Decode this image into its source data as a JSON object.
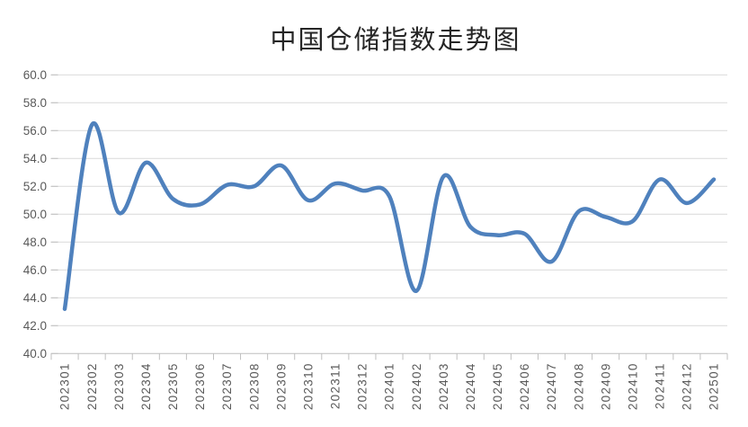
{
  "window": {
    "background": "#FFFFFF"
  },
  "chart_data": {
    "type": "line",
    "title": "中国仓储指数走势图",
    "categories": [
      "202301",
      "202302",
      "202303",
      "202304",
      "202305",
      "202306",
      "202307",
      "202308",
      "202309",
      "202310",
      "202311",
      "202312",
      "202401",
      "202402",
      "202403",
      "202404",
      "202405",
      "202406",
      "202407",
      "202408",
      "202409",
      "202410",
      "202411",
      "202412",
      "202501"
    ],
    "values": [
      43.2,
      56.4,
      50.1,
      53.7,
      51.1,
      50.7,
      52.1,
      52.0,
      53.5,
      51.0,
      52.2,
      51.7,
      51.3,
      44.5,
      52.7,
      49.1,
      48.5,
      48.6,
      46.6,
      50.2,
      49.8,
      49.5,
      52.5,
      50.8,
      52.5
    ],
    "xlabel": "",
    "ylabel": "",
    "ylim": [
      40.0,
      60.0
    ],
    "ytick_step": 2.0,
    "ytick_labels": [
      "60.0",
      "58.0",
      "56.0",
      "54.0",
      "52.0",
      "50.0",
      "48.0",
      "46.0",
      "44.0",
      "42.0",
      "40.0"
    ],
    "x_label_rotation": -90,
    "grid": true,
    "legend": "none",
    "style": {
      "line_color": "#4F81BD",
      "line_width": 4.5,
      "smooth": true,
      "grid_color": "#D9D9D9",
      "axis_color": "#BFBFBF",
      "tick_label_color": "#595959",
      "title_color": "#262626"
    }
  }
}
